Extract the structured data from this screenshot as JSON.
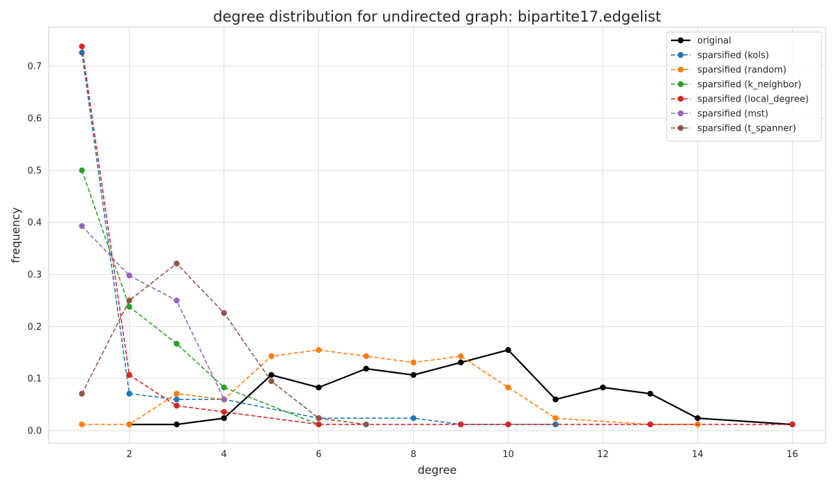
{
  "chart_data": {
    "type": "line",
    "title": "degree distribution for undirected graph: bipartite17.edgelist",
    "xlabel": "degree",
    "ylabel": "frequency",
    "xlim": [
      0.3,
      16.7
    ],
    "ylim": [
      -0.024,
      0.775
    ],
    "xticks": [
      2,
      4,
      6,
      8,
      10,
      12,
      14,
      16
    ],
    "yticks": [
      0.0,
      0.1,
      0.2,
      0.3,
      0.4,
      0.5,
      0.6,
      0.7
    ],
    "grid": true,
    "legend_position": "top-right",
    "series": [
      {
        "name": "original",
        "color": "#000000",
        "style": "solid",
        "x": [
          2,
          3,
          4,
          5,
          6,
          7,
          8,
          9,
          10,
          11,
          12,
          13,
          14,
          16
        ],
        "y": [
          0.012,
          0.012,
          0.024,
          0.107,
          0.083,
          0.119,
          0.107,
          0.131,
          0.155,
          0.06,
          0.083,
          0.071,
          0.024,
          0.012
        ]
      },
      {
        "name": "sparsified (kols)",
        "color": "#1f77b4",
        "style": "dashed",
        "x": [
          1,
          2,
          3,
          4,
          6,
          8,
          9,
          10,
          11
        ],
        "y": [
          0.726,
          0.071,
          0.06,
          0.06,
          0.024,
          0.024,
          0.012,
          0.012,
          0.012
        ]
      },
      {
        "name": "sparsified (random)",
        "color": "#ff7f0e",
        "style": "dashed",
        "x": [
          1,
          2,
          3,
          4,
          5,
          6,
          7,
          8,
          9,
          10,
          11,
          13,
          14
        ],
        "y": [
          0.012,
          0.012,
          0.071,
          0.06,
          0.143,
          0.155,
          0.143,
          0.131,
          0.143,
          0.083,
          0.024,
          0.012,
          0.012
        ]
      },
      {
        "name": "sparsified (k_neighbor)",
        "color": "#2ca02c",
        "style": "dashed",
        "x": [
          1,
          2,
          3,
          4,
          6
        ],
        "y": [
          0.5,
          0.238,
          0.167,
          0.083,
          0.012
        ]
      },
      {
        "name": "sparsified (local_degree)",
        "color": "#d62728",
        "style": "dashed",
        "x": [
          1,
          2,
          3,
          4,
          6,
          9,
          10,
          13,
          16
        ],
        "y": [
          0.738,
          0.107,
          0.048,
          0.036,
          0.012,
          0.012,
          0.012,
          0.012,
          0.012
        ]
      },
      {
        "name": "sparsified (mst)",
        "color": "#9467bd",
        "style": "dashed",
        "x": [
          1,
          2,
          3,
          4
        ],
        "y": [
          0.393,
          0.298,
          0.25,
          0.06
        ]
      },
      {
        "name": "sparsified (t_spanner)",
        "color": "#8c564b",
        "style": "dashed",
        "x": [
          1,
          2,
          3,
          4,
          5,
          6,
          7
        ],
        "y": [
          0.071,
          0.25,
          0.321,
          0.226,
          0.095,
          0.024,
          0.012
        ]
      }
    ]
  }
}
